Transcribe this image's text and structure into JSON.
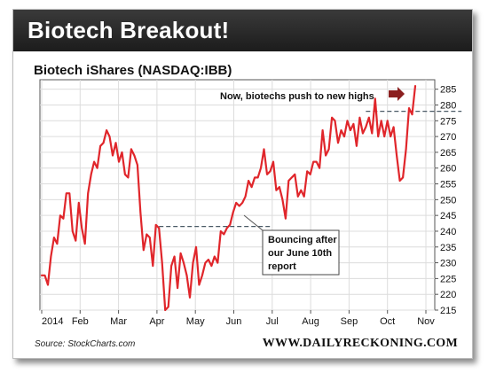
{
  "header": {
    "title": "Biotech Breakout!"
  },
  "footer": {
    "source": "Source: StockCharts.com",
    "brand": "WWW.DAILYRECKONING.COM"
  },
  "annotations": {
    "top_note": "Now, biotechs push to new highs",
    "callout_lines": [
      "Bouncing after",
      "our June 10th",
      "report"
    ]
  },
  "colors": {
    "line": "#e0262b",
    "arrow": "#8b1f1f",
    "dashed": "#4a5a66",
    "banner": "#2a2a2a"
  },
  "chart_data": {
    "type": "line",
    "title": "Biotech iShares (NASDAQ:IBB)",
    "xlabel": "",
    "ylabel": "",
    "ylim": [
      215,
      288
    ],
    "y_ticks": [
      215,
      220,
      225,
      230,
      235,
      240,
      245,
      250,
      255,
      260,
      265,
      270,
      275,
      280,
      285
    ],
    "x_tick_labels": [
      "2014",
      "Feb",
      "Mar",
      "Apr",
      "May",
      "Jun",
      "Jul",
      "Aug",
      "Sep",
      "Oct",
      "Nov"
    ],
    "grid": true,
    "reference_levels": [
      {
        "value": 241.5,
        "from_index": 38,
        "to_index": 74
      },
      {
        "value": 278,
        "from_index": 105,
        "to_index": 136
      }
    ],
    "series": [
      {
        "name": "IBB",
        "values": [
          226,
          226,
          223,
          232,
          238,
          236,
          245,
          244,
          252,
          252,
          240,
          237,
          249,
          241,
          236,
          252,
          258,
          262,
          260,
          267,
          268,
          272,
          270,
          264,
          268,
          262,
          265,
          258,
          257,
          266,
          264,
          261,
          246,
          234,
          239,
          238,
          229,
          242,
          241,
          230,
          215,
          216,
          229,
          232,
          222,
          233,
          230,
          226,
          219,
          230,
          235,
          223,
          226,
          230,
          231,
          229,
          232,
          230,
          240,
          239,
          241,
          242,
          246,
          249,
          248,
          249,
          251,
          256,
          254,
          257,
          257,
          260,
          266,
          258,
          259,
          262,
          253,
          254,
          250,
          244,
          256,
          257,
          258,
          251,
          253,
          251,
          259,
          258,
          262,
          262,
          260,
          272,
          264,
          266,
          276,
          275,
          268,
          272,
          270,
          275,
          272,
          274,
          267,
          276,
          271,
          273,
          276,
          271,
          282,
          270,
          275,
          270,
          275,
          270,
          273,
          264,
          256,
          257,
          266,
          279,
          277,
          286
        ]
      }
    ]
  }
}
